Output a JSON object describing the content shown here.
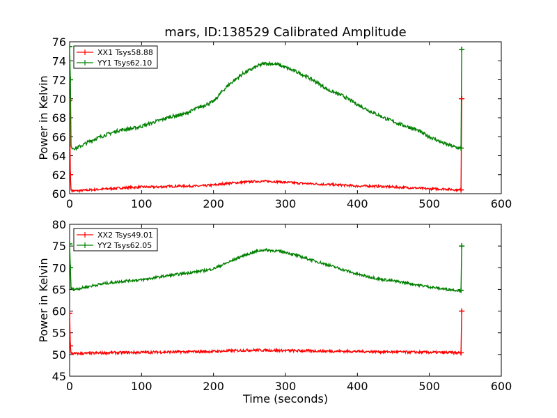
{
  "figure": {
    "title": "mars, ID:138529 Calibrated Amplitude"
  },
  "chart_data": [
    {
      "type": "line",
      "ylabel": "Power in Kelvin",
      "xlabel": "",
      "xlim": [
        0,
        600
      ],
      "ylim": [
        60,
        76
      ],
      "x_ticks": [
        0,
        100,
        200,
        300,
        400,
        500,
        600
      ],
      "y_ticks": [
        60,
        62,
        64,
        66,
        68,
        70,
        72,
        74,
        76
      ],
      "legend_position": "top-left",
      "grid": false,
      "series": [
        {
          "name": "XX1 Tsys58.88",
          "color": "#ff0000",
          "noise": 0.12,
          "x": [
            0,
            1,
            2,
            5,
            10,
            30,
            50,
            70,
            100,
            120,
            150,
            180,
            200,
            220,
            240,
            260,
            270,
            280,
            300,
            320,
            350,
            380,
            400,
            420,
            450,
            480,
            500,
            520,
            540,
            544,
            545
          ],
          "y": [
            69.8,
            62.0,
            60.4,
            60.3,
            60.3,
            60.4,
            60.5,
            60.6,
            60.7,
            60.7,
            60.8,
            60.8,
            60.9,
            61.1,
            61.2,
            61.3,
            61.3,
            61.3,
            61.2,
            61.1,
            61.0,
            60.9,
            60.8,
            60.8,
            60.7,
            60.6,
            60.5,
            60.5,
            60.4,
            60.4,
            70.0
          ]
        },
        {
          "name": "YY1 Tsys62.10",
          "color": "#008000",
          "noise": 0.18,
          "x": [
            0,
            1,
            2,
            5,
            10,
            20,
            30,
            50,
            70,
            90,
            100,
            120,
            140,
            160,
            180,
            190,
            200,
            210,
            220,
            240,
            260,
            270,
            280,
            290,
            300,
            320,
            340,
            360,
            380,
            400,
            420,
            440,
            460,
            480,
            500,
            520,
            540,
            544,
            545
          ],
          "y": [
            75.5,
            72.0,
            65.0,
            64.8,
            64.8,
            65.2,
            65.6,
            66.2,
            66.7,
            66.9,
            67.1,
            67.6,
            68.1,
            68.4,
            69.1,
            69.4,
            69.7,
            70.6,
            71.4,
            72.6,
            73.4,
            73.7,
            73.7,
            73.6,
            73.3,
            72.7,
            71.9,
            70.9,
            70.3,
            69.4,
            68.6,
            67.9,
            67.3,
            66.8,
            66.0,
            65.3,
            64.8,
            64.8,
            75.2
          ]
        }
      ]
    },
    {
      "type": "line",
      "ylabel": "Power in Kelvin",
      "xlabel": "Time (seconds)",
      "xlim": [
        0,
        600
      ],
      "ylim": [
        45,
        80
      ],
      "x_ticks": [
        0,
        100,
        200,
        300,
        400,
        500,
        600
      ],
      "y_ticks": [
        45,
        50,
        55,
        60,
        65,
        70,
        75,
        80
      ],
      "legend_position": "top-left",
      "grid": false,
      "series": [
        {
          "name": "XX2 Tsys49.01",
          "color": "#ff0000",
          "noise": 0.3,
          "x": [
            0,
            1,
            2,
            5,
            10,
            50,
            100,
            150,
            200,
            250,
            270,
            300,
            350,
            400,
            450,
            500,
            540,
            544,
            545
          ],
          "y": [
            59.5,
            52.0,
            50.3,
            50.2,
            50.2,
            50.4,
            50.5,
            50.6,
            50.7,
            51.0,
            51.0,
            50.9,
            50.8,
            50.7,
            50.6,
            50.5,
            50.4,
            50.4,
            60.0
          ]
        },
        {
          "name": "YY2 Tsys62.05",
          "color": "#008000",
          "noise": 0.3,
          "x": [
            0,
            1,
            2,
            5,
            10,
            30,
            50,
            80,
            100,
            130,
            160,
            190,
            200,
            220,
            240,
            260,
            270,
            280,
            300,
            330,
            360,
            400,
            430,
            460,
            500,
            520,
            540,
            544,
            545
          ],
          "y": [
            75.5,
            70.0,
            65.2,
            65.0,
            65.1,
            65.8,
            66.4,
            67.0,
            67.2,
            68.0,
            68.7,
            69.4,
            69.8,
            71.2,
            72.7,
            73.8,
            74.1,
            74.0,
            73.6,
            72.1,
            70.6,
            68.5,
            67.4,
            66.7,
            65.6,
            65.1,
            64.8,
            64.8,
            75.0
          ]
        }
      ]
    }
  ]
}
